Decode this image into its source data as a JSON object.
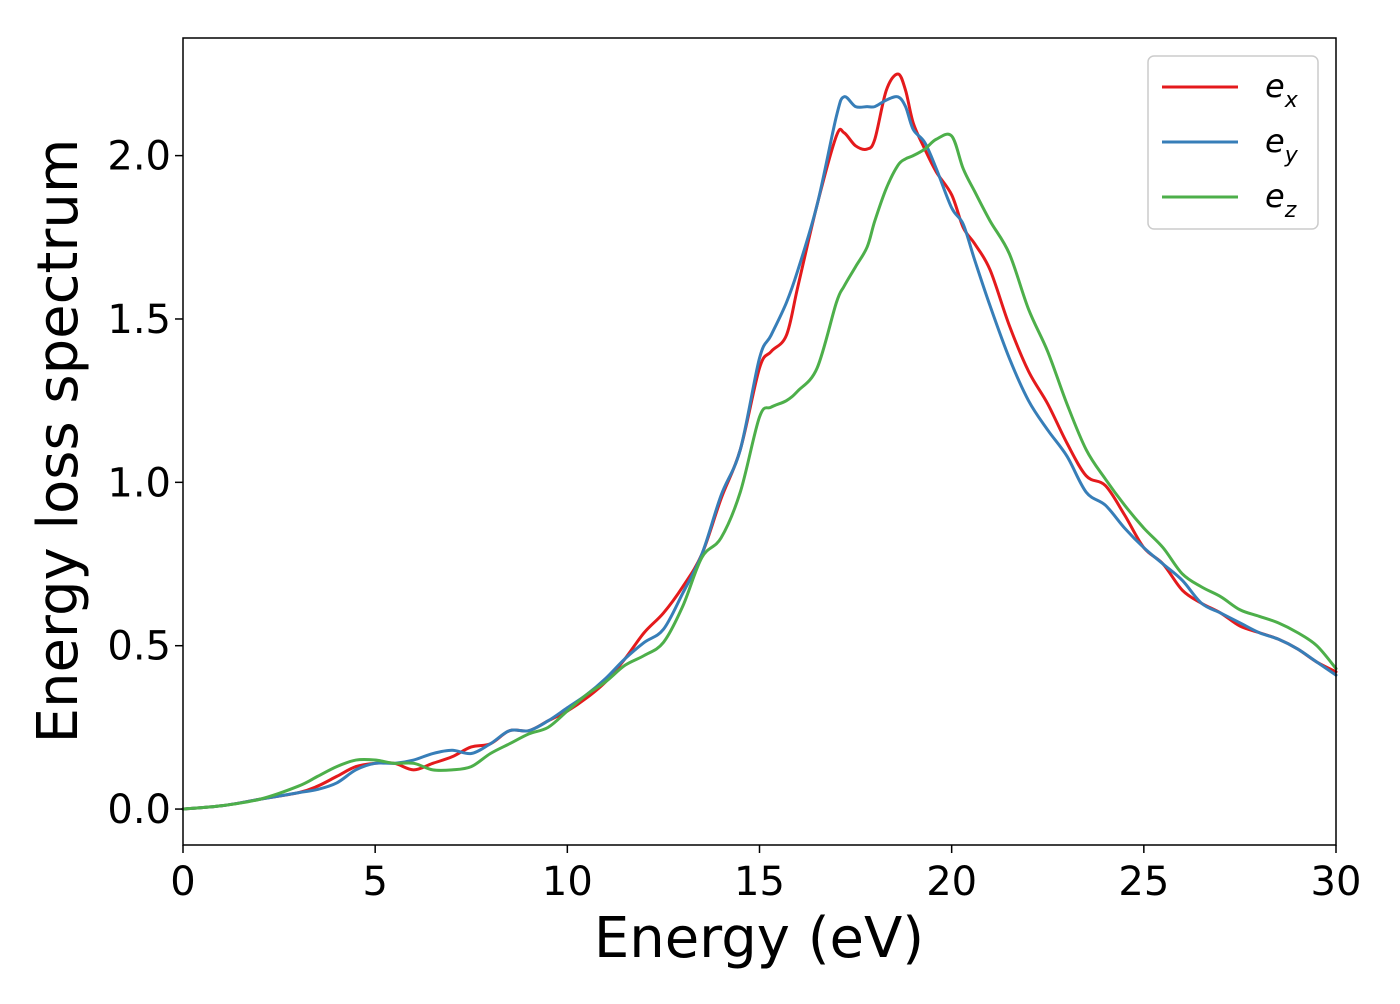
{
  "chart_data": {
    "type": "line",
    "title": "",
    "xlabel": "Energy (eV)",
    "ylabel": "Energy loss spectrum",
    "xlim": [
      0,
      30
    ],
    "ylim": [
      -0.11,
      2.36
    ],
    "xticks": [
      0,
      5,
      10,
      15,
      20,
      25,
      30
    ],
    "xtick_labels": [
      "0",
      "5",
      "10",
      "15",
      "20",
      "25",
      "30"
    ],
    "yticks": [
      0.0,
      0.5,
      1.0,
      1.5,
      2.0
    ],
    "ytick_labels": [
      "0.0",
      "0.5",
      "1.0",
      "1.5",
      "2.0"
    ],
    "grid": false,
    "legend_position": "top-right",
    "series": [
      {
        "name": "e_x",
        "label_main": "e",
        "label_sub": "x",
        "color": "#e41a1c",
        "x": [
          0,
          1,
          2,
          3,
          3.5,
          4,
          4.5,
          5,
          5.5,
          6,
          6.5,
          7,
          7.5,
          8,
          8.5,
          9,
          9.5,
          10,
          10.5,
          11,
          11.5,
          12,
          12.5,
          13,
          13.5,
          14,
          14.5,
          15,
          15.3,
          15.7,
          16,
          16.5,
          17,
          17.2,
          17.5,
          17.8,
          18,
          18.3,
          18.6,
          18.8,
          19,
          19.3,
          19.6,
          20,
          20.3,
          20.6,
          21,
          21.5,
          22,
          22.5,
          23,
          23.5,
          24,
          24.5,
          25,
          25.5,
          26,
          26.5,
          27,
          27.5,
          28,
          28.5,
          29,
          29.5,
          30
        ],
        "y": [
          0,
          0.01,
          0.03,
          0.05,
          0.07,
          0.1,
          0.13,
          0.14,
          0.14,
          0.12,
          0.14,
          0.16,
          0.19,
          0.2,
          0.24,
          0.24,
          0.27,
          0.3,
          0.34,
          0.39,
          0.46,
          0.54,
          0.6,
          0.68,
          0.78,
          0.95,
          1.1,
          1.35,
          1.4,
          1.45,
          1.6,
          1.85,
          2.06,
          2.07,
          2.03,
          2.02,
          2.05,
          2.2,
          2.25,
          2.2,
          2.1,
          2.02,
          1.95,
          1.88,
          1.78,
          1.73,
          1.65,
          1.48,
          1.34,
          1.24,
          1.12,
          1.02,
          0.99,
          0.9,
          0.8,
          0.75,
          0.67,
          0.63,
          0.6,
          0.56,
          0.54,
          0.52,
          0.49,
          0.45,
          0.42
        ]
      },
      {
        "name": "e_y",
        "label_main": "e",
        "label_sub": "y",
        "color": "#377eb8",
        "x": [
          0,
          1,
          2,
          3,
          3.5,
          4,
          4.5,
          5,
          5.5,
          6,
          6.5,
          7,
          7.5,
          8,
          8.5,
          9,
          9.5,
          10,
          10.5,
          11,
          11.5,
          12,
          12.5,
          13,
          13.5,
          14,
          14.5,
          15,
          15.3,
          15.7,
          16,
          16.5,
          17,
          17.2,
          17.5,
          17.8,
          18,
          18.3,
          18.6,
          18.8,
          19,
          19.3,
          19.6,
          20,
          20.3,
          20.6,
          21,
          21.5,
          22,
          22.5,
          23,
          23.5,
          24,
          24.5,
          25,
          25.5,
          26,
          26.5,
          27,
          27.5,
          28,
          28.5,
          29,
          29.5,
          30
        ],
        "y": [
          0,
          0.01,
          0.03,
          0.05,
          0.06,
          0.08,
          0.12,
          0.14,
          0.14,
          0.15,
          0.17,
          0.18,
          0.17,
          0.2,
          0.24,
          0.24,
          0.27,
          0.31,
          0.35,
          0.4,
          0.46,
          0.51,
          0.55,
          0.66,
          0.78,
          0.96,
          1.1,
          1.38,
          1.45,
          1.55,
          1.65,
          1.85,
          2.12,
          2.18,
          2.15,
          2.15,
          2.15,
          2.17,
          2.18,
          2.15,
          2.08,
          2.04,
          1.96,
          1.84,
          1.79,
          1.68,
          1.54,
          1.38,
          1.25,
          1.16,
          1.08,
          0.97,
          0.93,
          0.86,
          0.8,
          0.75,
          0.7,
          0.63,
          0.6,
          0.57,
          0.54,
          0.52,
          0.49,
          0.45,
          0.41
        ]
      },
      {
        "name": "e_z",
        "label_main": "e",
        "label_sub": "z",
        "color": "#4daf4a",
        "x": [
          0,
          1,
          2,
          3,
          3.5,
          4,
          4.5,
          5,
          5.5,
          6,
          6.5,
          7,
          7.5,
          8,
          8.5,
          9,
          9.5,
          10,
          10.5,
          11,
          11.5,
          12,
          12.5,
          13,
          13.5,
          14,
          14.5,
          15,
          15.3,
          15.7,
          16,
          16.5,
          17,
          17.2,
          17.5,
          17.8,
          18,
          18.3,
          18.6,
          18.8,
          19,
          19.3,
          19.6,
          20,
          20.3,
          20.6,
          21,
          21.5,
          22,
          22.5,
          23,
          23.5,
          24,
          24.5,
          25,
          25.5,
          26,
          26.5,
          27,
          27.5,
          28,
          28.5,
          29,
          29.5,
          30
        ],
        "y": [
          0,
          0.01,
          0.03,
          0.07,
          0.1,
          0.13,
          0.15,
          0.15,
          0.14,
          0.14,
          0.12,
          0.12,
          0.13,
          0.17,
          0.2,
          0.23,
          0.25,
          0.3,
          0.35,
          0.39,
          0.44,
          0.47,
          0.51,
          0.62,
          0.77,
          0.83,
          0.97,
          1.2,
          1.23,
          1.25,
          1.28,
          1.35,
          1.55,
          1.6,
          1.66,
          1.72,
          1.8,
          1.9,
          1.97,
          1.99,
          2.0,
          2.02,
          2.05,
          2.06,
          1.96,
          1.89,
          1.8,
          1.7,
          1.53,
          1.4,
          1.24,
          1.1,
          1.01,
          0.93,
          0.86,
          0.8,
          0.72,
          0.68,
          0.65,
          0.61,
          0.59,
          0.57,
          0.54,
          0.5,
          0.43
        ]
      }
    ]
  }
}
